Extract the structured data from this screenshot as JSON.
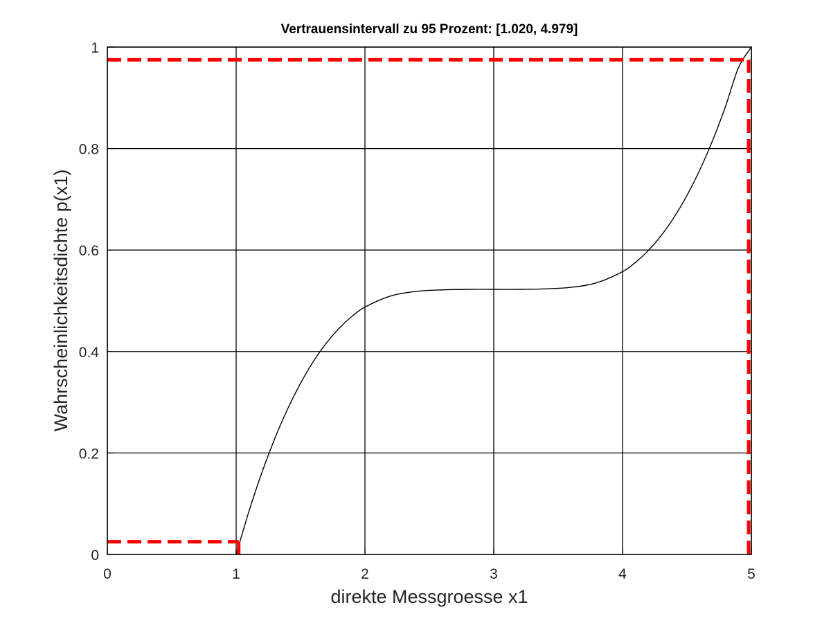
{
  "chart_data": {
    "type": "line",
    "title": "Vertrauensintervall zu 95 Prozent: [1.020, 4.979]",
    "xlabel": "direkte Messgroesse x1",
    "ylabel": "Wahrscheinlichkeitsdichte p(x1)",
    "xlim": [
      0,
      5
    ],
    "ylim": [
      0,
      1
    ],
    "x_ticks": [
      "0",
      "1",
      "2",
      "3",
      "4",
      "5"
    ],
    "y_ticks": [
      "0",
      "0.2",
      "0.4",
      "0.6",
      "0.8",
      "1"
    ],
    "grid": true,
    "colors": {
      "curve": "#000000",
      "interval": "#ff0000",
      "grid": "#000000"
    },
    "series": [
      {
        "style": "solid",
        "x": [
          1.0,
          1.1,
          1.2,
          1.3,
          1.4,
          1.5,
          1.6,
          1.7,
          1.8,
          1.9,
          2.0,
          2.2,
          2.4,
          2.6,
          2.8,
          3.0,
          3.2,
          3.4,
          3.6,
          3.8,
          4.0,
          4.1,
          4.2,
          4.3,
          4.4,
          4.5,
          4.6,
          4.7,
          4.8,
          4.9,
          5.0
        ],
        "y": [
          0.0,
          0.0855,
          0.1615,
          0.2285,
          0.287,
          0.3375,
          0.3805,
          0.4165,
          0.446,
          0.4695,
          0.4875,
          0.5095,
          0.5185,
          0.5215,
          0.5225,
          0.5225,
          0.5225,
          0.5235,
          0.5265,
          0.5355,
          0.5575,
          0.5755,
          0.599,
          0.6285,
          0.6645,
          0.7075,
          0.758,
          0.8165,
          0.8835,
          0.9595,
          1.0
        ]
      }
    ],
    "interval_lines": [
      {
        "style": "dashed",
        "x": [
          0,
          1.02
        ],
        "y": [
          0.025,
          0.025
        ]
      },
      {
        "style": "dashed",
        "x": [
          1.02,
          1.02
        ],
        "y": [
          0,
          0.025
        ]
      },
      {
        "style": "dashed",
        "x": [
          0,
          4.979
        ],
        "y": [
          0.975,
          0.975
        ]
      },
      {
        "style": "dashed",
        "x": [
          4.979,
          4.979
        ],
        "y": [
          0,
          0.975
        ]
      }
    ]
  }
}
